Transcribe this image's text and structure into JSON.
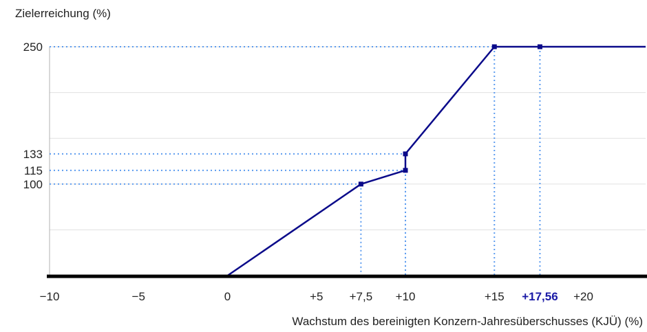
{
  "chart_data": {
    "type": "line",
    "ylabel": "Zielerreichung (%)",
    "xlabel": "Wachstum des bereinigten Konzern-Jahresüberschusses (KJÜ) (%)",
    "xlim": [
      -10,
      23.5
    ],
    "ylim": [
      0,
      250
    ],
    "x_ticks": [
      {
        "value": -10,
        "label": "−10"
      },
      {
        "value": -5,
        "label": "−5"
      },
      {
        "value": 0,
        "label": "0"
      },
      {
        "value": 5,
        "label": "+5"
      },
      {
        "value": 7.5,
        "label": "+7,5"
      },
      {
        "value": 10,
        "label": "+10"
      },
      {
        "value": 15,
        "label": "+15"
      },
      {
        "value": 17.56,
        "label": "+17,56",
        "highlight": true
      },
      {
        "value": 20,
        "label": "+20"
      }
    ],
    "y_ticks": [
      {
        "value": 100,
        "label": "100"
      },
      {
        "value": 115,
        "label": "115"
      },
      {
        "value": 133,
        "label": "133"
      },
      {
        "value": 250,
        "label": "250"
      }
    ],
    "gridlines_y": [
      50,
      100,
      150,
      200,
      250
    ],
    "series": [
      {
        "points": [
          {
            "x": -10,
            "y": 0
          },
          {
            "x": 0,
            "y": 0
          },
          {
            "x": 7.5,
            "y": 100
          },
          {
            "x": 10,
            "y": 115
          },
          {
            "x": 10,
            "y": 133
          },
          {
            "x": 15,
            "y": 250
          },
          {
            "x": 17.56,
            "y": 250
          },
          {
            "x": 23.5,
            "y": 250
          }
        ],
        "color": "#0a0a8a"
      }
    ],
    "markers": [
      {
        "x": 7.5,
        "y": 100
      },
      {
        "x": 10,
        "y": 115
      },
      {
        "x": 10,
        "y": 133
      },
      {
        "x": 15,
        "y": 250
      },
      {
        "x": 17.56,
        "y": 250
      }
    ],
    "colors": {
      "line": "#0a0a8a",
      "guide": "#5b9bef",
      "highlight": "#1a1aa6",
      "grid": "#e0e0e0",
      "axis": "#000000"
    },
    "grid": true,
    "legend": "none"
  }
}
